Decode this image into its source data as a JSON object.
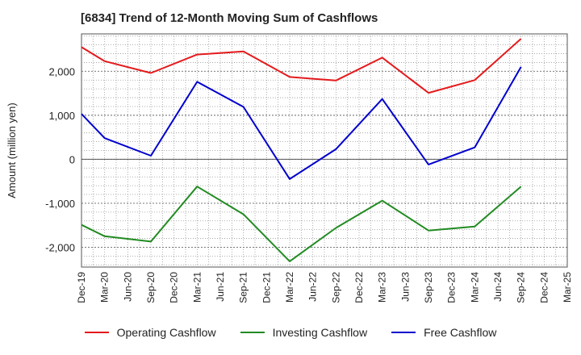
{
  "chart_data": {
    "type": "line",
    "title": "[6834]  Trend of 12-Month Moving Sum of Cashflows",
    "ylabel": "Amount (million yen)",
    "xlabel": "",
    "ylim": [
      -2450,
      2850
    ],
    "yticks": [
      -2000,
      -1000,
      0,
      1000,
      2000
    ],
    "ytick_labels": [
      "-2,000",
      "-1,000",
      "0",
      "1,000",
      "2,000"
    ],
    "categories": [
      "Dec-19",
      "Mar-20",
      "Jun-20",
      "Sep-20",
      "Dec-20",
      "Mar-21",
      "Jun-21",
      "Sep-21",
      "Dec-21",
      "Mar-22",
      "Jun-22",
      "Sep-22",
      "Dec-22",
      "Mar-23",
      "Jun-23",
      "Sep-23",
      "Dec-23",
      "Mar-24",
      "Jun-24",
      "Sep-24",
      "Dec-24",
      "Mar-25"
    ],
    "x": [
      "Dec-19",
      "Mar-20",
      "Sep-20",
      "Mar-21",
      "Sep-21",
      "Mar-22",
      "Sep-22",
      "Mar-23",
      "Sep-23",
      "Mar-24",
      "Sep-24"
    ],
    "grid": true,
    "legend_position": "bottom",
    "series": [
      {
        "name": "Operating Cashflow",
        "color": "#e41a1c",
        "values": [
          2550,
          2230,
          1960,
          2380,
          2450,
          1870,
          1790,
          2310,
          1510,
          1800,
          2740
        ]
      },
      {
        "name": "Investing Cashflow",
        "color": "#228b22",
        "values": [
          -1490,
          -1750,
          -1870,
          -620,
          -1250,
          -2320,
          -1560,
          -940,
          -1620,
          -1530,
          -620
        ]
      },
      {
        "name": "Free Cashflow",
        "color": "#0000cd",
        "values": [
          1030,
          480,
          80,
          1760,
          1190,
          -450,
          230,
          1370,
          -120,
          270,
          2100
        ]
      }
    ]
  }
}
